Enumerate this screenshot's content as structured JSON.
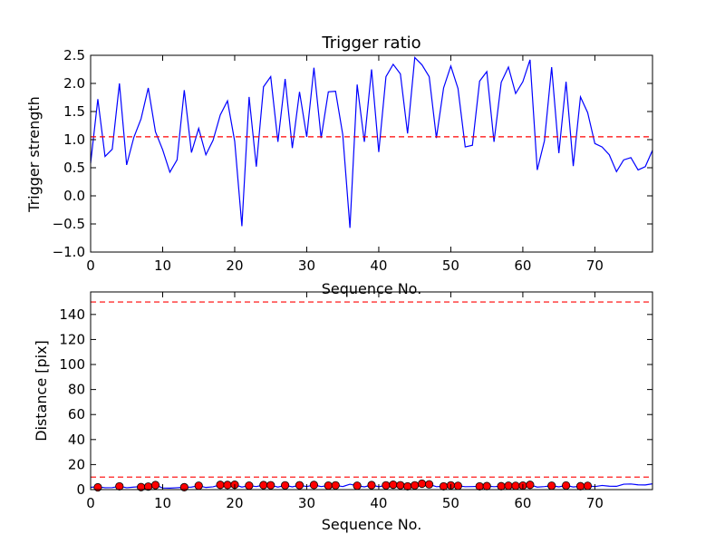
{
  "chart_data": [
    {
      "type": "line",
      "title": "Trigger ratio",
      "xlabel": "Sequence No.",
      "ylabel": "Trigger strength",
      "xlim": [
        0,
        78
      ],
      "ylim": [
        -1.0,
        2.5
      ],
      "grid": false,
      "x_ticks": [
        0,
        10,
        20,
        30,
        40,
        50,
        60,
        70
      ],
      "x_tick_labels": [
        "0",
        "10",
        "20",
        "30",
        "40",
        "50",
        "60",
        "70"
      ],
      "y_ticks": [
        -1.0,
        -0.5,
        0.0,
        0.5,
        1.0,
        1.5,
        2.0,
        2.5
      ],
      "y_tick_labels": [
        "−1.0",
        "−0.5",
        "0.0",
        "0.5",
        "1.0",
        "1.5",
        "2.0",
        "2.5"
      ],
      "series": [
        {
          "color": "#0000ff",
          "style": "solid",
          "values": [
            0.58,
            1.72,
            0.7,
            0.83,
            2.0,
            0.55,
            1.04,
            1.37,
            1.92,
            1.14,
            0.82,
            0.42,
            0.64,
            1.88,
            0.77,
            1.2,
            0.73,
            0.99,
            1.44,
            1.69,
            0.97,
            -0.54,
            1.76,
            0.52,
            1.94,
            2.12,
            0.96,
            2.08,
            0.85,
            1.85,
            1.05,
            2.28,
            1.03,
            1.85,
            1.86,
            1.09,
            -0.57,
            1.98,
            0.96,
            2.25,
            0.78,
            2.12,
            2.34,
            2.17,
            1.11,
            2.46,
            2.33,
            2.12,
            1.03,
            1.92,
            2.31,
            1.91,
            0.87,
            0.9,
            2.04,
            2.21,
            0.96,
            2.02,
            2.29,
            1.82,
            2.03,
            2.42,
            0.46,
            0.98,
            2.29,
            0.76,
            2.03,
            0.53,
            1.76,
            1.48,
            0.93,
            0.87,
            0.73,
            0.43,
            0.64,
            0.68,
            0.46,
            0.52,
            0.81
          ]
        }
      ],
      "threshold": {
        "value": 1.05,
        "color": "#ff0000",
        "style": "dashed"
      }
    },
    {
      "type": "scatter",
      "title": "",
      "xlabel": "Sequence No.",
      "ylabel": "Distance [pix]",
      "xlim": [
        0,
        78
      ],
      "ylim": [
        0,
        158
      ],
      "grid": false,
      "x_ticks": [
        0,
        10,
        20,
        30,
        40,
        50,
        60,
        70
      ],
      "x_tick_labels": [
        "0",
        "10",
        "20",
        "30",
        "40",
        "50",
        "60",
        "70"
      ],
      "y_ticks": [
        0,
        20,
        40,
        60,
        80,
        100,
        120,
        140
      ],
      "y_tick_labels": [
        "0",
        "20",
        "40",
        "60",
        "80",
        "100",
        "120",
        "140"
      ],
      "line_series": {
        "color": "#0000ff",
        "values": [
          1.8,
          2.3,
          1.5,
          1.6,
          2.6,
          1.5,
          2.0,
          2.4,
          2.8,
          3.6,
          1.3,
          1.2,
          1.5,
          1.9,
          2.0,
          3.1,
          1.7,
          2.2,
          3.8,
          3.7,
          3.9,
          2.0,
          3.2,
          2.4,
          3.6,
          3.5,
          2.0,
          3.4,
          2.2,
          3.5,
          2.4,
          3.7,
          2.4,
          3.2,
          3.4,
          2.4,
          4.3,
          3.1,
          2.2,
          3.6,
          2.3,
          3.4,
          3.9,
          3.5,
          2.6,
          3.4,
          4.7,
          4.2,
          2.3,
          2.6,
          3.4,
          3.0,
          2.3,
          2.4,
          2.6,
          2.8,
          2.3,
          2.7,
          3.1,
          3.0,
          3.2,
          3.8,
          2.0,
          2.4,
          3.1,
          2.2,
          3.3,
          2.1,
          2.7,
          3.0,
          2.4,
          3.3,
          2.7,
          2.6,
          4.3,
          4.5,
          3.8,
          3.7,
          4.6
        ]
      },
      "point_series": {
        "color": "#ff0000",
        "points": [
          [
            1,
            1.8
          ],
          [
            4,
            2.6
          ],
          [
            7,
            2.0
          ],
          [
            8,
            2.4
          ],
          [
            9,
            3.6
          ],
          [
            13,
            1.9
          ],
          [
            15,
            3.1
          ],
          [
            18,
            3.8
          ],
          [
            19,
            3.7
          ],
          [
            20,
            3.9
          ],
          [
            22,
            3.2
          ],
          [
            24,
            3.6
          ],
          [
            25,
            3.5
          ],
          [
            27,
            3.4
          ],
          [
            29,
            3.5
          ],
          [
            31,
            3.7
          ],
          [
            33,
            3.2
          ],
          [
            34,
            3.4
          ],
          [
            37,
            3.1
          ],
          [
            39,
            3.6
          ],
          [
            41,
            3.4
          ],
          [
            42,
            3.9
          ],
          [
            43,
            3.5
          ],
          [
            44,
            2.6
          ],
          [
            45,
            3.4
          ],
          [
            46,
            4.7
          ],
          [
            47,
            4.2
          ],
          [
            49,
            2.6
          ],
          [
            50,
            3.4
          ],
          [
            51,
            3.0
          ],
          [
            54,
            2.6
          ],
          [
            55,
            2.8
          ],
          [
            57,
            2.7
          ],
          [
            58,
            3.1
          ],
          [
            59,
            3.0
          ],
          [
            60,
            3.2
          ],
          [
            61,
            3.8
          ],
          [
            64,
            3.1
          ],
          [
            66,
            3.3
          ],
          [
            68,
            2.7
          ],
          [
            69,
            3.0
          ]
        ]
      },
      "thresholds": [
        {
          "value": 10,
          "color": "#ff0000",
          "style": "dashed"
        },
        {
          "value": 150,
          "color": "#ff0000",
          "style": "dashed"
        }
      ]
    }
  ]
}
